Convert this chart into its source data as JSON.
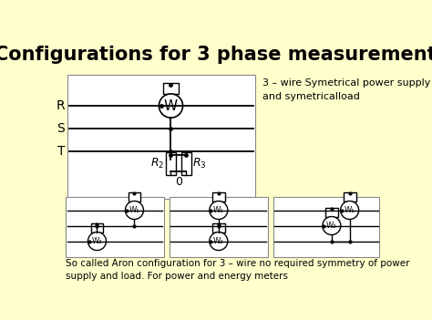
{
  "title": "Configurations for 3 phase measurements",
  "bg_color": "#FFFFCC",
  "title_fontsize": 15,
  "top_right_text": "3 – wire Symetrical power supply\nand symetricalload",
  "bottom_text": "So called Aron configuration for 3 – wire no required symmetry of power\nsupply and load. For power and energy meters",
  "phase_labels": [
    "R",
    "S",
    "T"
  ],
  "wattmeter_label": "W",
  "zero_label": "0"
}
